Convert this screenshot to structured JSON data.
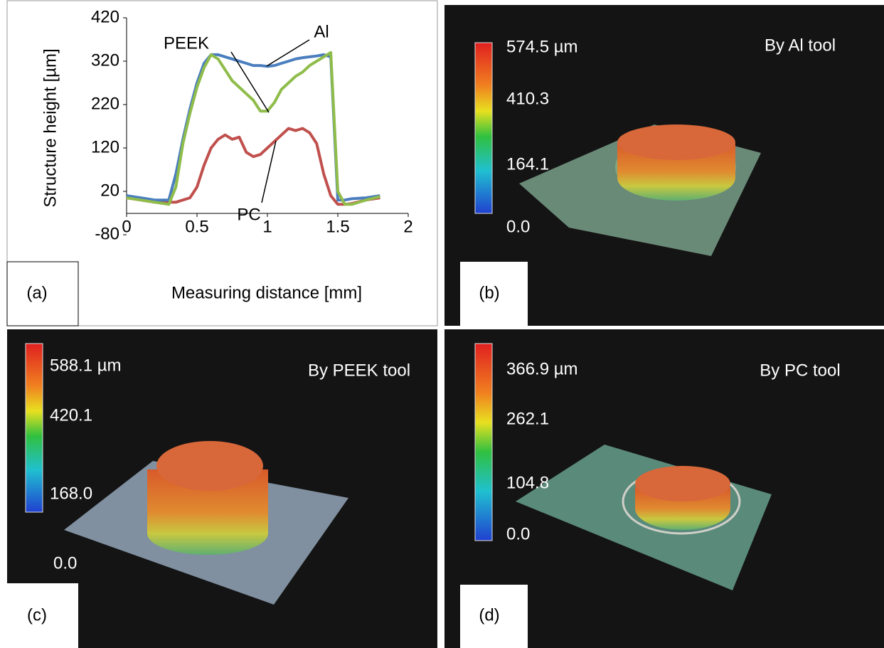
{
  "chart_data": {
    "type": "line",
    "panel_label": "(a)",
    "x_label": "Measuring distance [mm]",
    "y_label": "Structure height [µm]",
    "xlim": [
      0,
      2
    ],
    "xticks": [
      0,
      0.5,
      1,
      1.5,
      2
    ],
    "ylim": [
      -80,
      420
    ],
    "yticks": [
      -80,
      20,
      120,
      220,
      320,
      420
    ],
    "x": [
      0,
      0.1,
      0.2,
      0.3,
      0.35,
      0.4,
      0.45,
      0.5,
      0.55,
      0.6,
      0.65,
      0.7,
      0.75,
      0.8,
      0.85,
      0.9,
      0.95,
      1.0,
      1.05,
      1.1,
      1.15,
      1.2,
      1.25,
      1.3,
      1.35,
      1.4,
      1.45,
      1.5,
      1.55,
      1.6,
      1.7,
      1.8
    ],
    "series": [
      {
        "name": "Al",
        "color": "#4a7ebf",
        "values": [
          10,
          5,
          0,
          0,
          60,
          140,
          210,
          270,
          315,
          335,
          335,
          330,
          325,
          320,
          315,
          310,
          310,
          308,
          310,
          315,
          320,
          325,
          328,
          330,
          332,
          335,
          330,
          0,
          0,
          3,
          5,
          10
        ]
      },
      {
        "name": "PEEK",
        "color": "#8fbc4a",
        "values": [
          5,
          0,
          -5,
          -10,
          30,
          130,
          200,
          260,
          305,
          335,
          325,
          300,
          275,
          260,
          245,
          230,
          205,
          205,
          225,
          255,
          270,
          285,
          295,
          310,
          320,
          330,
          340,
          20,
          -10,
          -10,
          0,
          8
        ]
      },
      {
        "name": "PC",
        "color": "#c0504d",
        "values": [
          5,
          0,
          -5,
          -5,
          -5,
          0,
          5,
          30,
          80,
          120,
          140,
          150,
          140,
          145,
          110,
          100,
          105,
          120,
          135,
          150,
          165,
          160,
          165,
          155,
          130,
          60,
          10,
          -10,
          -10,
          -8,
          0,
          5
        ]
      }
    ]
  },
  "panels": [
    {
      "label": "(b)",
      "title": "By Al tool",
      "scale": [
        "574.5 µm",
        "410.3",
        "164.1",
        "0.0"
      ]
    },
    {
      "label": "(c)",
      "title": "By PEEK tool",
      "scale": [
        "588.1 µm",
        "420.1",
        "168.0",
        "0.0"
      ]
    },
    {
      "label": "(d)",
      "title": "By PC tool",
      "scale": [
        "366.9 µm",
        "262.1",
        "104.8",
        "0.0"
      ]
    }
  ]
}
